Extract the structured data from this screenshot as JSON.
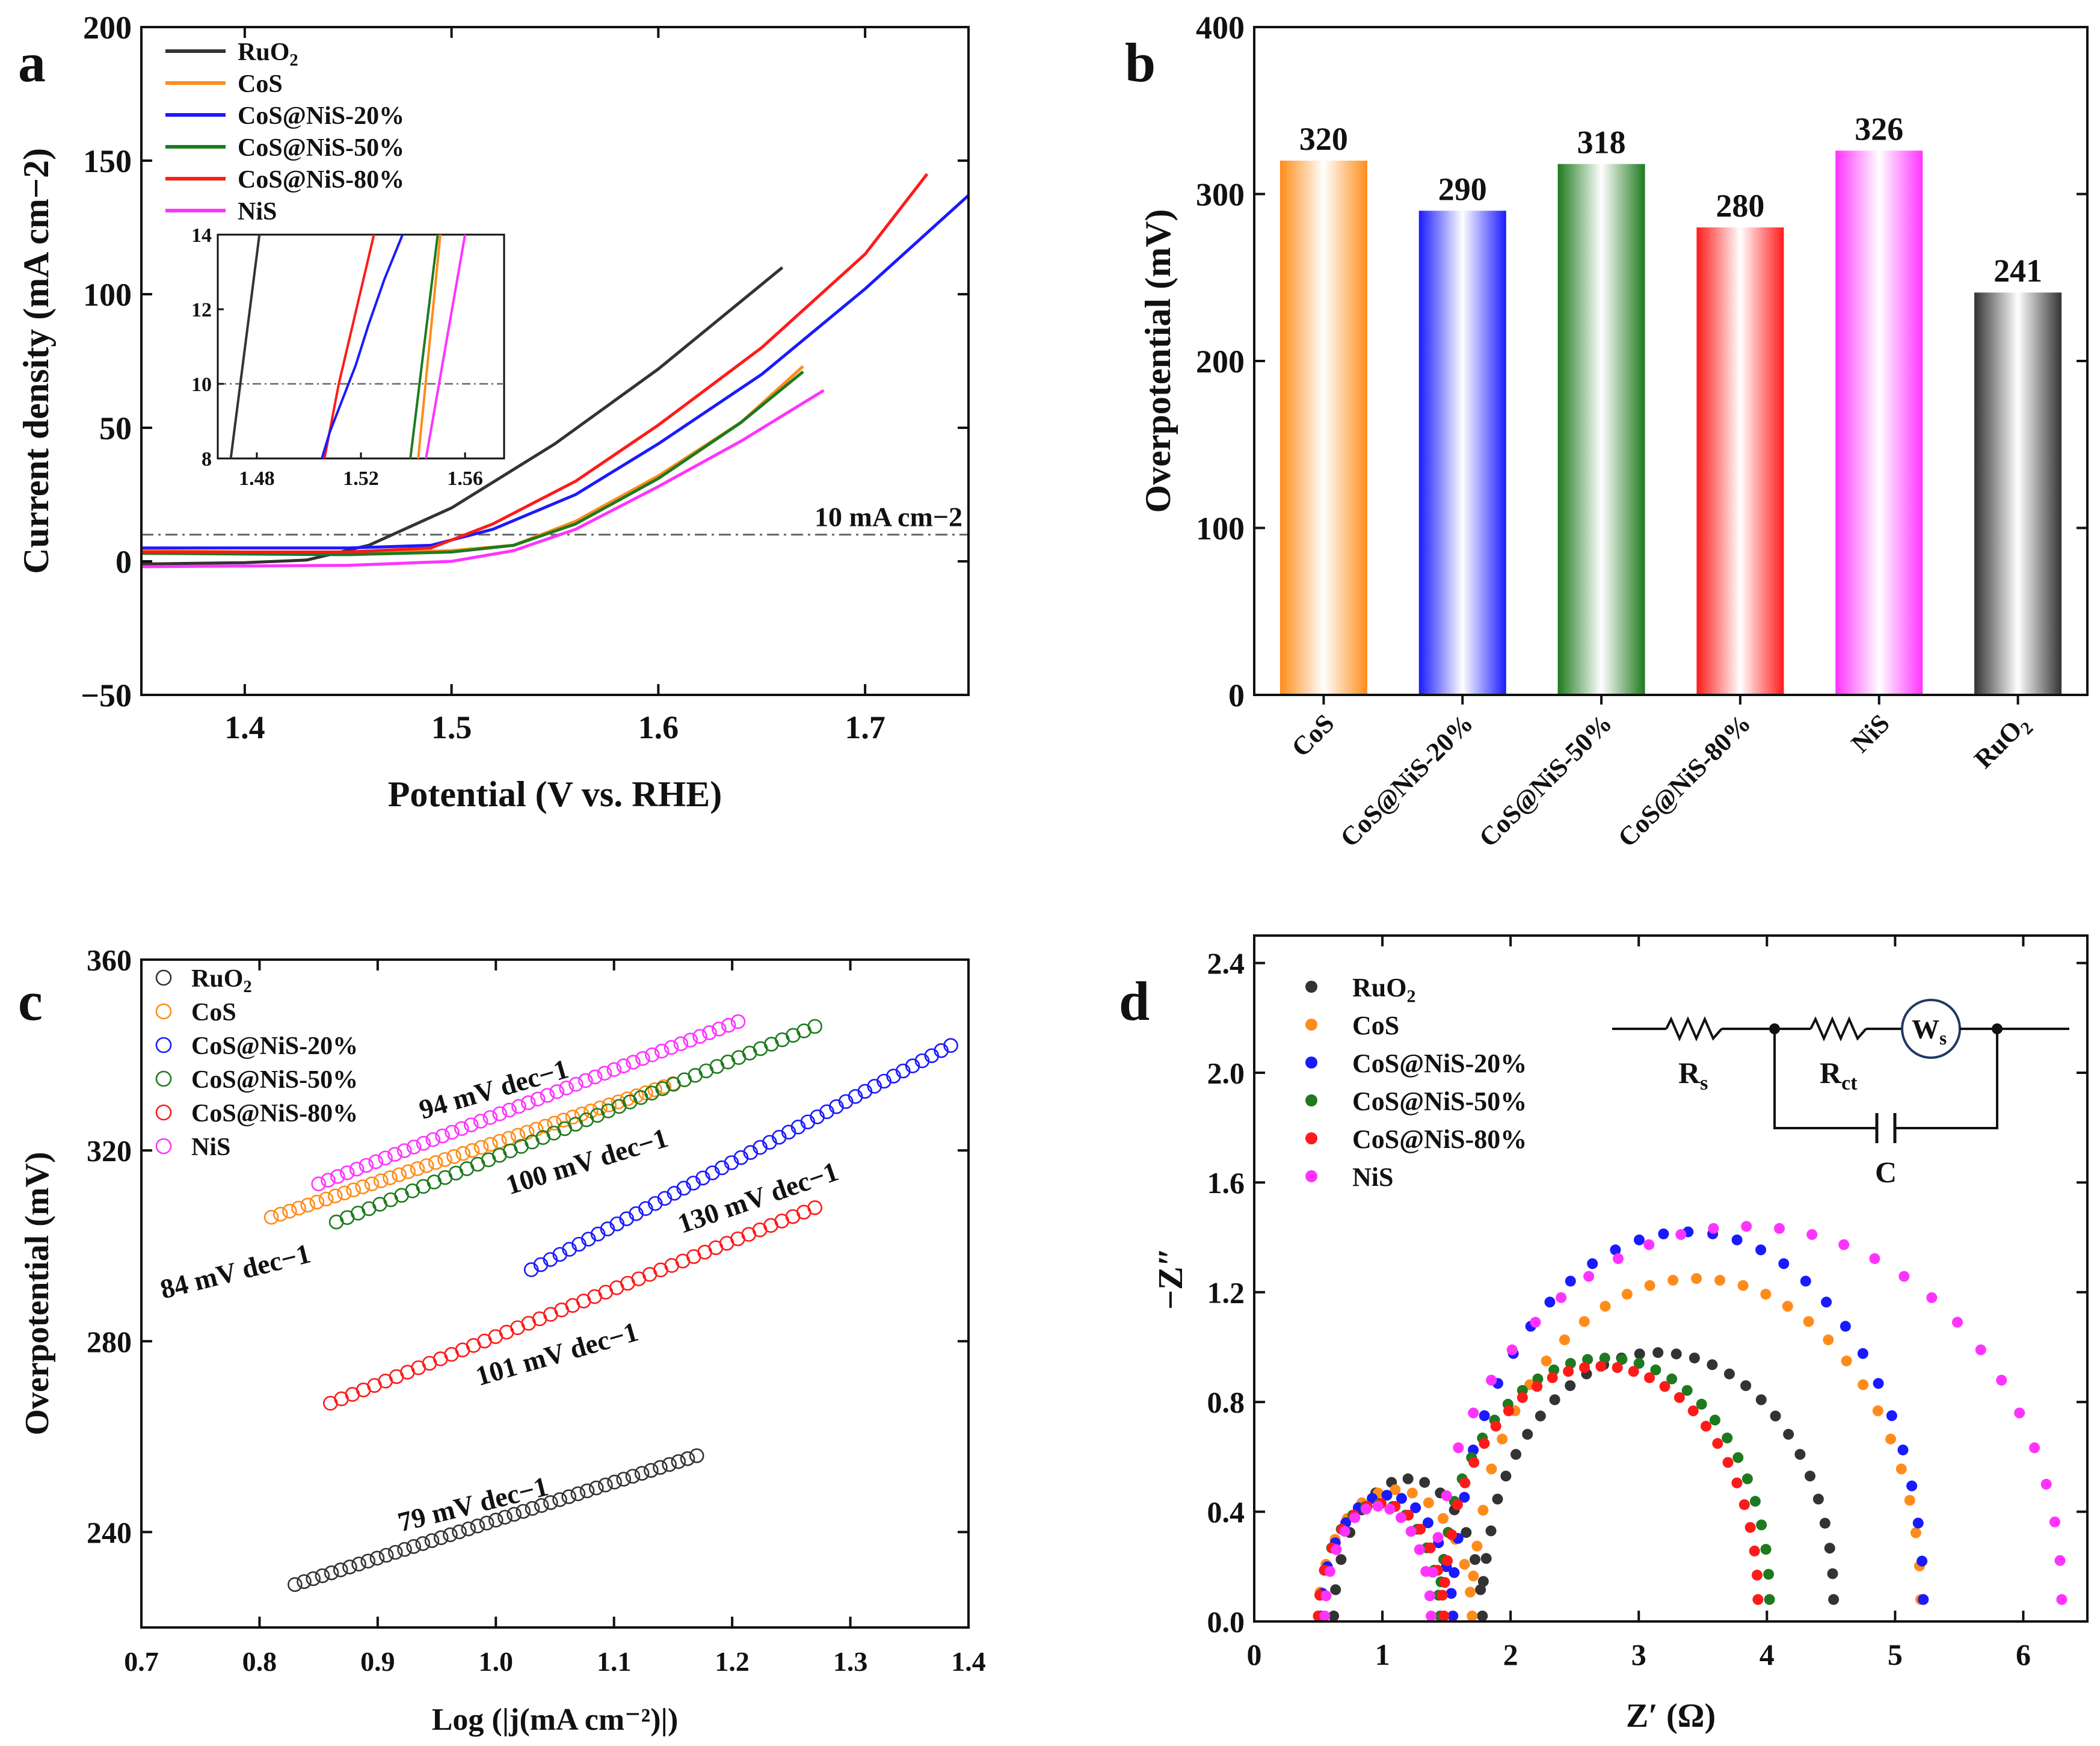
{
  "colors": {
    "RuO2": "#333333",
    "CoS": "#ff8c1a",
    "CoS@NiS-20%": "#1a1aff",
    "CoS@NiS-50%": "#1e7a1e",
    "CoS@NiS-80%": "#ff1a1a",
    "NiS": "#ff33ff",
    "axis": "#111111",
    "ref_line": "#666666"
  },
  "chart_data": [
    {
      "panel": "a",
      "type": "line",
      "xlabel": "Potential (V vs. RHE)",
      "ylabel": "Current density (mA cm−2)",
      "xlim": [
        1.35,
        1.75
      ],
      "ylim": [
        -50,
        200
      ],
      "xticks": [
        "1.4",
        "1.5",
        "1.6",
        "1.7"
      ],
      "yticks": [
        "−50",
        "0",
        "50",
        "100",
        "150",
        "200"
      ],
      "ref_line": {
        "y": 10,
        "label": "10 mA cm−2"
      },
      "legend_position": "top-left",
      "series": [
        {
          "name": "RuO2",
          "legend": "RuO2",
          "x": [
            1.35,
            1.4,
            1.43,
            1.46,
            1.5,
            1.55,
            1.6,
            1.66
          ],
          "y": [
            -1,
            -0.5,
            0.5,
            6,
            20,
            44,
            72,
            110
          ]
        },
        {
          "name": "CoS",
          "legend": "CoS",
          "x": [
            1.35,
            1.45,
            1.5,
            1.53,
            1.56,
            1.6,
            1.64,
            1.67
          ],
          "y": [
            4,
            3,
            4,
            6,
            15,
            32,
            52,
            73
          ]
        },
        {
          "name": "CoS@NiS-20%",
          "legend": "CoS@NiS-20%",
          "x": [
            1.35,
            1.45,
            1.49,
            1.52,
            1.56,
            1.6,
            1.65,
            1.7,
            1.75
          ],
          "y": [
            5,
            5,
            6,
            12,
            25,
            44,
            70,
            102,
            137
          ]
        },
        {
          "name": "CoS@NiS-50%",
          "legend": "CoS@NiS-50%",
          "x": [
            1.35,
            1.45,
            1.5,
            1.53,
            1.56,
            1.6,
            1.64,
            1.67
          ],
          "y": [
            3,
            2.5,
            3.5,
            6,
            14,
            31,
            52,
            71
          ]
        },
        {
          "name": "CoS@NiS-80%",
          "legend": "CoS@NiS-80%",
          "x": [
            1.35,
            1.45,
            1.49,
            1.52,
            1.56,
            1.6,
            1.65,
            1.7,
            1.73
          ],
          "y": [
            3.5,
            3.5,
            5,
            14,
            30,
            51,
            80,
            115,
            145
          ]
        },
        {
          "name": "NiS",
          "legend": "NiS",
          "x": [
            1.35,
            1.45,
            1.5,
            1.53,
            1.56,
            1.6,
            1.64,
            1.68
          ],
          "y": [
            -2,
            -1.5,
            0,
            4,
            12,
            28,
            45,
            64
          ]
        }
      ],
      "inset": {
        "xlim": [
          1.465,
          1.575
        ],
        "ylim": [
          8,
          14
        ],
        "xticks": [
          "1.48",
          "1.52",
          "1.56"
        ],
        "yticks": [
          "8",
          "10",
          "12",
          "14"
        ],
        "ref_line_y": 10,
        "series": [
          {
            "name": "RuO2",
            "x": [
              1.47,
              1.481
            ],
            "y": [
              8,
              14
            ]
          },
          {
            "name": "CoS@NiS-80%",
            "x": [
              1.506,
              1.5115
            ],
            "y": [
              8,
              10
            ]
          },
          {
            "name": "CoS@NiS-80%",
            "x": [
              1.5115,
              1.525
            ],
            "y": [
              10,
              14
            ]
          },
          {
            "name": "CoS@NiS-20%",
            "x": [
              1.505,
              1.508,
              1.513,
              1.518,
              1.523,
              1.529,
              1.536
            ],
            "y": [
              8,
              8.7,
              9.6,
              10.5,
              11.6,
              12.8,
              14
            ]
          },
          {
            "name": "CoS@NiS-50%",
            "x": [
              1.539,
              1.5495
            ],
            "y": [
              8,
              14
            ]
          },
          {
            "name": "CoS",
            "x": [
              1.542,
              1.5505
            ],
            "y": [
              8,
              14
            ]
          },
          {
            "name": "NiS",
            "x": [
              1.545,
              1.56
            ],
            "y": [
              8,
              14
            ]
          }
        ]
      }
    },
    {
      "panel": "b",
      "type": "bar",
      "ylabel": "Overpotential (mV)",
      "ylim": [
        0,
        400
      ],
      "yticks": [
        "0",
        "100",
        "200",
        "300",
        "400"
      ],
      "categories": [
        "CoS",
        "CoS@NiS-20%",
        "CoS@NiS-50%",
        "CoS@NiS-80%",
        "NiS",
        "RuO2"
      ],
      "values": [
        320,
        290,
        318,
        280,
        326,
        241
      ],
      "value_labels": [
        "320",
        "290",
        "318",
        "280",
        "326",
        "241"
      ]
    },
    {
      "panel": "c",
      "type": "scatter",
      "xlabel": "Log (|j(mA cm⁻²)|)",
      "ylabel": "Overpotential (mV)",
      "xlim": [
        0.7,
        1.4
      ],
      "ylim": [
        220,
        360
      ],
      "xticks": [
        "0.7",
        "0.8",
        "0.9",
        "1.0",
        "1.1",
        "1.2",
        "1.3",
        "1.4"
      ],
      "yticks": [
        "240",
        "280",
        "320",
        "360"
      ],
      "legend_position": "top-left",
      "series": [
        {
          "name": "RuO2",
          "legend": "RuO2",
          "x_range": [
            0.83,
            1.17
          ],
          "y_range": [
            229,
            256
          ],
          "tafel_label": "79 mV dec−1"
        },
        {
          "name": "CoS",
          "legend": "CoS",
          "x_range": [
            0.81,
            1.15
          ],
          "y_range": [
            306,
            334
          ],
          "tafel_label": "84 mV dec−1"
        },
        {
          "name": "CoS@NiS-20%",
          "legend": "CoS@NiS-20%",
          "x_range": [
            1.03,
            1.385
          ],
          "y_range": [
            295,
            342
          ],
          "tafel_label": "130 mV dec−1"
        },
        {
          "name": "CoS@NiS-50%",
          "legend": "CoS@NiS-50%",
          "x_range": [
            0.865,
            1.27
          ],
          "y_range": [
            305,
            346
          ],
          "tafel_label": "100 mV dec−1"
        },
        {
          "name": "CoS@NiS-80%",
          "legend": "CoS@NiS-80%",
          "x_range": [
            0.86,
            1.27
          ],
          "y_range": [
            267,
            308
          ],
          "tafel_label": "101 mV dec−1"
        },
        {
          "name": "NiS",
          "legend": "NiS",
          "x_range": [
            0.85,
            1.205
          ],
          "y_range": [
            313,
            347
          ],
          "tafel_label": "94 mV dec−1"
        }
      ]
    },
    {
      "panel": "d",
      "type": "scatter",
      "xlabel": "Z′ (Ω)",
      "ylabel": "−Z″",
      "xlim": [
        0,
        6.5
      ],
      "ylim": [
        0,
        2.5
      ],
      "xticks": [
        "0",
        "1",
        "2",
        "3",
        "4",
        "5",
        "6"
      ],
      "yticks": [
        "0.0",
        "0.4",
        "0.8",
        "1.2",
        "1.6",
        "2.0",
        "2.4"
      ],
      "legend_position": "top-left",
      "series": [
        {
          "name": "RuO2",
          "legend": "RuO2",
          "Rs": 0.62,
          "arc1_end": 1.78,
          "arc1_height": 0.52,
          "arc2_end": 4.52,
          "arc2_height": 0.98
        },
        {
          "name": "CoS",
          "legend": "CoS",
          "Rs": 0.5,
          "arc1_end": 1.7,
          "arc1_height": 0.48,
          "arc2_end": 5.2,
          "arc2_height": 1.25
        },
        {
          "name": "CoS@NiS-20%",
          "legend": "CoS@NiS-20%",
          "Rs": 0.52,
          "arc1_end": 1.55,
          "arc1_height": 0.46,
          "arc2_end": 5.22,
          "arc2_height": 1.42
        },
        {
          "name": "CoS@NiS-50%",
          "legend": "CoS@NiS-50%",
          "Rs": 0.5,
          "arc1_end": 1.45,
          "arc1_height": 0.43,
          "arc2_end": 4.02,
          "arc2_height": 0.96
        },
        {
          "name": "CoS@NiS-80%",
          "legend": "CoS@NiS-80%",
          "Rs": 0.5,
          "arc1_end": 1.48,
          "arc1_height": 0.43,
          "arc2_end": 3.93,
          "arc2_height": 0.93
        },
        {
          "name": "NiS",
          "legend": "NiS",
          "Rs": 0.55,
          "arc1_end": 1.38,
          "arc1_height": 0.42,
          "arc2_end": 6.3,
          "arc2_height": 1.44
        }
      ],
      "circuit": {
        "Rs": "Rs",
        "Rct": "Rct",
        "Ws": "Ws",
        "C": "C"
      }
    }
  ]
}
